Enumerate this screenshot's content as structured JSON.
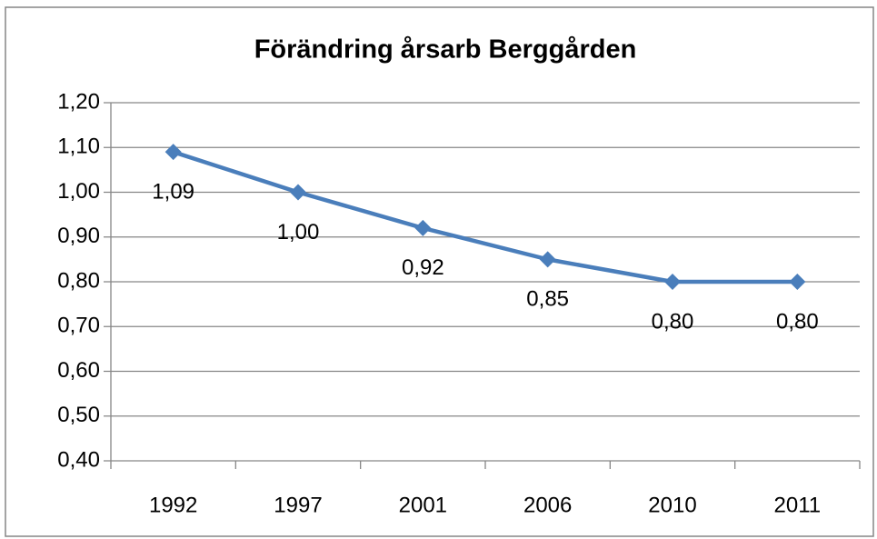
{
  "chart_data": {
    "type": "line",
    "title": "Förändring årsarb Berggården",
    "categories": [
      "1992",
      "1997",
      "2001",
      "2006",
      "2010",
      "2011"
    ],
    "series": [
      {
        "color": "#4a7ebb",
        "values": [
          1.09,
          1.0,
          0.92,
          0.85,
          0.8,
          0.8
        ],
        "value_labels": [
          "1,09",
          "1,00",
          "0,92",
          "0,85",
          "0,80",
          "0,80"
        ]
      }
    ],
    "ylim": [
      0.4,
      1.2
    ],
    "yticks": [
      {
        "value": 0.4,
        "label": "0,40"
      },
      {
        "value": 0.5,
        "label": "0,50"
      },
      {
        "value": 0.6,
        "label": "0,60"
      },
      {
        "value": 0.7,
        "label": "0,70"
      },
      {
        "value": 0.8,
        "label": "0,80"
      },
      {
        "value": 0.9,
        "label": "0,90"
      },
      {
        "value": 1.0,
        "label": "1,00"
      },
      {
        "value": 1.1,
        "label": "1,10"
      },
      {
        "value": 1.2,
        "label": "1,20"
      }
    ],
    "grid": true
  }
}
